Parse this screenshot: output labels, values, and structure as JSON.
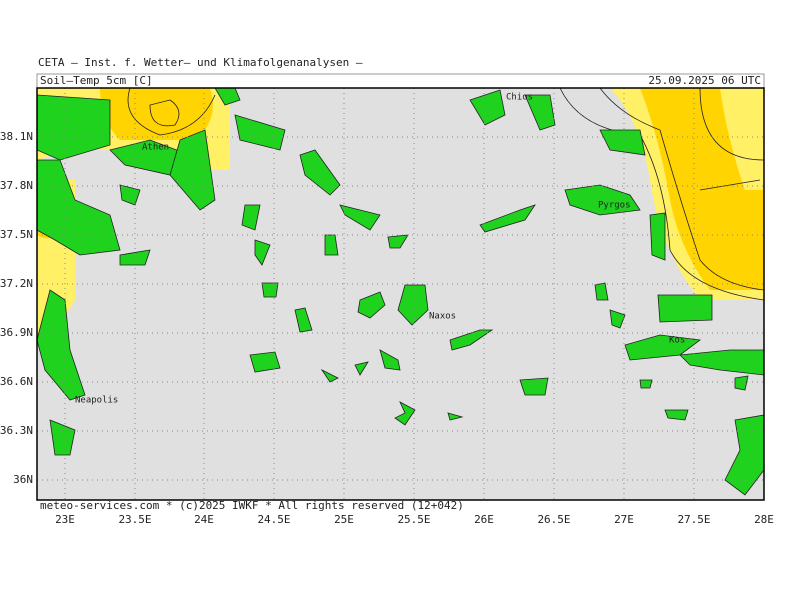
{
  "header": {
    "institute": "CETA — Inst. f. Wetter— und Klimafolgenanalysen —",
    "parameter": "Soil—Temp 5cm [C]",
    "valid_time": "25.09.2025 06 UTC"
  },
  "map": {
    "lat_labels": [
      "38.1N",
      "37.8N",
      "37.5N",
      "37.2N",
      "36.9N",
      "36.6N",
      "36.3N",
      "36N"
    ],
    "lon_labels": [
      "23E",
      "23.5E",
      "24E",
      "24.5E",
      "25E",
      "25.5E",
      "26E",
      "26.5E",
      "27E",
      "27.5E",
      "28E"
    ],
    "places": [
      "Athen",
      "Chios",
      "Pyrgos",
      "Naxos",
      "Kos",
      "Neapolis"
    ]
  },
  "footer": "meteo-services.com * (c)2025 IWKF * All rights reserved (12+042)"
}
